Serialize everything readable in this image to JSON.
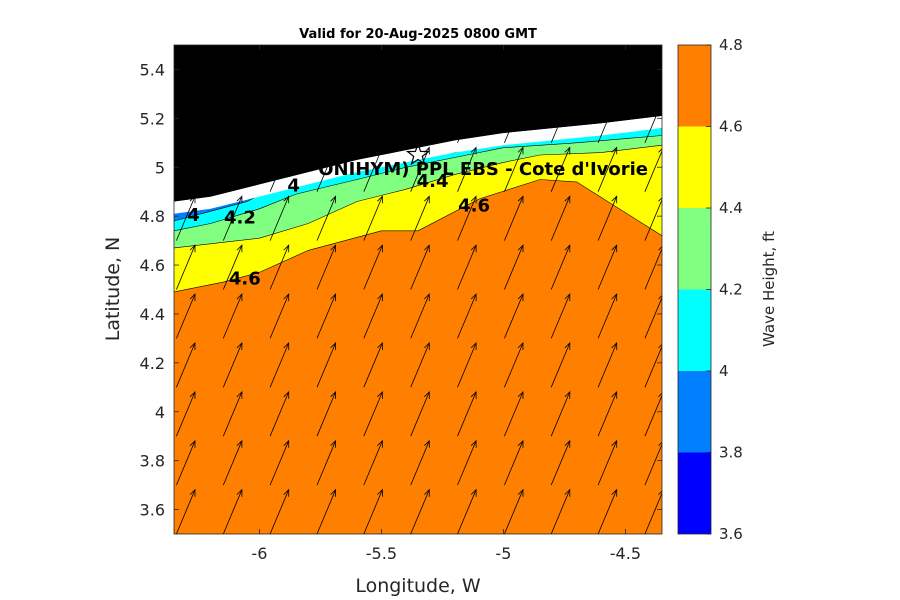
{
  "chart_data": {
    "type": "heatmap",
    "title": "Valid for 20-Aug-2025 0800 GMT",
    "xlabel": "Longitude, W",
    "ylabel": "Latitude, N",
    "xlim": [
      -6.35,
      -4.35
    ],
    "ylim": [
      3.5,
      5.5
    ],
    "x_ticks": [
      -6,
      -5.5,
      -5,
      -4.5
    ],
    "x_tick_labels": [
      "-6",
      "-5.5",
      "-5",
      "-4.5"
    ],
    "y_ticks": [
      3.6,
      3.8,
      4,
      4.2,
      4.4,
      4.6,
      4.8,
      5,
      5.2,
      5.4
    ],
    "y_tick_labels": [
      "3.6",
      "3.8",
      "4",
      "4.2",
      "4.4",
      "4.6",
      "4.8",
      "5",
      "5.2",
      "5.4"
    ],
    "colorbar": {
      "label": "Wave Height, ft",
      "range": [
        3.6,
        4.8
      ],
      "levels": [
        3.6,
        3.8,
        4.0,
        4.2,
        4.4,
        4.6,
        4.8
      ],
      "tick_labels": [
        "3.6",
        "3.8",
        "4",
        "4.2",
        "4.4",
        "4.6",
        "4.8"
      ],
      "colors": [
        "#0000ff",
        "#0080ff",
        "#00ffff",
        "#80ff80",
        "#ffff00",
        "#ff8000"
      ]
    },
    "land_color": "#000000",
    "no_data_color": "#ffffff",
    "coastline": [
      [
        -6.35,
        4.86
      ],
      [
        -6.2,
        4.88
      ],
      [
        -6.0,
        4.93
      ],
      [
        -5.8,
        4.98
      ],
      [
        -5.6,
        5.03
      ],
      [
        -5.4,
        5.07
      ],
      [
        -5.2,
        5.11
      ],
      [
        -5.0,
        5.14
      ],
      [
        -4.8,
        5.16
      ],
      [
        -4.6,
        5.18
      ],
      [
        -4.35,
        5.21
      ]
    ],
    "bands": [
      {
        "level": 4.6,
        "boundary": [
          [
            -6.35,
            4.49
          ],
          [
            -6.15,
            4.53
          ],
          [
            -6.0,
            4.57
          ],
          [
            -5.8,
            4.66
          ],
          [
            -5.5,
            4.74
          ],
          [
            -5.35,
            4.74
          ],
          [
            -5.1,
            4.87
          ],
          [
            -4.85,
            4.95
          ],
          [
            -4.7,
            4.94
          ],
          [
            -4.35,
            4.72
          ]
        ]
      },
      {
        "level": 4.4,
        "boundary": [
          [
            -6.35,
            4.67
          ],
          [
            -6.0,
            4.71
          ],
          [
            -5.8,
            4.77
          ],
          [
            -5.6,
            4.86
          ],
          [
            -5.4,
            4.91
          ],
          [
            -5.2,
            4.97
          ],
          [
            -5.0,
            5.02
          ],
          [
            -4.85,
            5.05
          ],
          [
            -4.6,
            5.06
          ],
          [
            -4.35,
            5.09
          ]
        ]
      },
      {
        "level": 4.2,
        "boundary": [
          [
            -6.35,
            4.74
          ],
          [
            -6.2,
            4.77
          ],
          [
            -6.0,
            4.83
          ],
          [
            -5.85,
            4.89
          ],
          [
            -5.6,
            4.95
          ],
          [
            -5.4,
            5.0
          ],
          [
            -5.2,
            5.04
          ],
          [
            -5.0,
            5.08
          ],
          [
            -4.7,
            5.1
          ],
          [
            -4.35,
            5.13
          ]
        ]
      },
      {
        "level": 4.0,
        "boundary": [
          [
            -6.35,
            4.78
          ],
          [
            -6.2,
            4.82
          ],
          [
            -6.05,
            4.86
          ],
          [
            -5.9,
            4.94
          ],
          [
            -5.75,
            4.98
          ],
          [
            -5.6,
            5.0
          ],
          [
            -5.45,
            5.03
          ],
          [
            -5.2,
            5.06
          ],
          [
            -5.0,
            5.11
          ],
          [
            -4.8,
            5.14
          ],
          [
            -4.35,
            5.16
          ]
        ]
      },
      {
        "level": 3.8,
        "boundary": [
          [
            -6.35,
            4.83
          ],
          [
            -6.25,
            4.85
          ],
          [
            -6.1,
            4.88
          ],
          [
            -5.95,
            4.96
          ],
          [
            -5.8,
            5.0
          ],
          [
            -5.7,
            5.02
          ],
          [
            -5.6,
            5.04
          ],
          [
            -5.45,
            5.06
          ],
          [
            -5.3,
            5.09
          ],
          [
            -5.1,
            5.12
          ],
          [
            -4.35,
            5.19
          ]
        ]
      }
    ],
    "contour_labels": [
      {
        "text": "4",
        "lon": -6.27,
        "lat": 4.78
      },
      {
        "text": "4.2",
        "lon": -6.08,
        "lat": 4.77
      },
      {
        "text": "4",
        "lon": -5.86,
        "lat": 4.9
      },
      {
        "text": "4.4",
        "lon": -5.29,
        "lat": 4.92
      },
      {
        "text": "4.6",
        "lon": -5.12,
        "lat": 4.82
      },
      {
        "text": "4.6",
        "lon": -6.06,
        "lat": 4.52
      }
    ],
    "site": {
      "label": "ONIHYM) PPL EBS  - Cote d'Ivorie",
      "lon": -5.35,
      "lat": 5.05,
      "marker": "star"
    },
    "wind_field": {
      "lon_step": 0.192,
      "lat_step": 0.2,
      "u": 0.42,
      "v": 1.0
    }
  }
}
